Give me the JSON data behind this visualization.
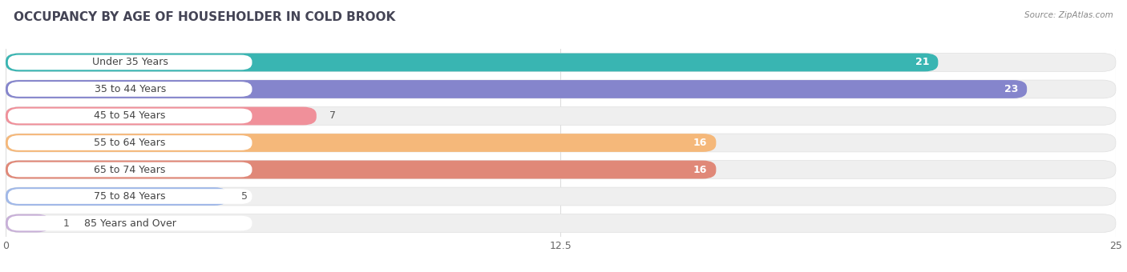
{
  "title": "OCCUPANCY BY AGE OF HOUSEHOLDER IN COLD BROOK",
  "source": "Source: ZipAtlas.com",
  "categories": [
    "Under 35 Years",
    "35 to 44 Years",
    "45 to 54 Years",
    "55 to 64 Years",
    "65 to 74 Years",
    "75 to 84 Years",
    "85 Years and Over"
  ],
  "values": [
    21,
    23,
    7,
    16,
    16,
    5,
    1
  ],
  "bar_colors": [
    "#39b5b2",
    "#8585cc",
    "#f0909a",
    "#f5b87a",
    "#e08878",
    "#a0b8e8",
    "#c8b0d8"
  ],
  "bar_bg_color": "#efefef",
  "bar_bg_border_color": "#e0e0e0",
  "xlim": [
    0,
    25
  ],
  "xticks": [
    0,
    12.5,
    25
  ],
  "title_fontsize": 11,
  "label_fontsize": 9,
  "value_fontsize": 9,
  "bar_height": 0.68,
  "background_color": "#ffffff",
  "label_pill_color": "#ffffff",
  "grid_color": "#dddddd"
}
